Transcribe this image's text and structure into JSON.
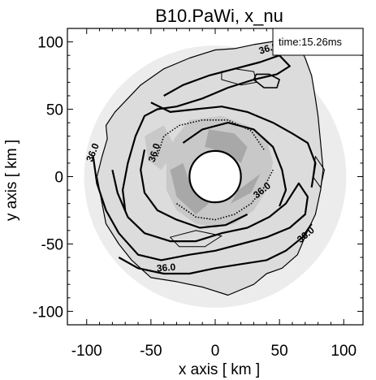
{
  "chart_data": {
    "type": "contour",
    "title": "B10.PaWi, x_nu",
    "xlabel": "x axis [ km ]",
    "ylabel": "y axis [ km ]",
    "xlim": [
      -115,
      115
    ],
    "ylim": [
      -110,
      110
    ],
    "xticks": [
      -100,
      -50,
      0,
      50,
      100
    ],
    "yticks": [
      -100,
      -50,
      0,
      50,
      100
    ],
    "time_label": "time:15.26ms",
    "contour_level_label": "36.0",
    "inner_radius_km": 20,
    "contour_labels": [
      {
        "x": 42,
        "y": 93,
        "rot": -18
      },
      {
        "x": -93,
        "y": 17,
        "rot": -68
      },
      {
        "x": -45,
        "y": 17,
        "rot": -72
      },
      {
        "x": 38,
        "y": -12,
        "rot": -40
      },
      {
        "x": 72,
        "y": -45,
        "rot": -40
      },
      {
        "x": -38,
        "y": -70,
        "rot": -5
      }
    ],
    "colors": {
      "background": "#ffffff",
      "outer_halo": "#ececec",
      "region_light": "#dcdcdc",
      "region_mid": "#c8c8c8",
      "region_dark": "#a8a8a8",
      "contour_line": "#000000"
    }
  }
}
